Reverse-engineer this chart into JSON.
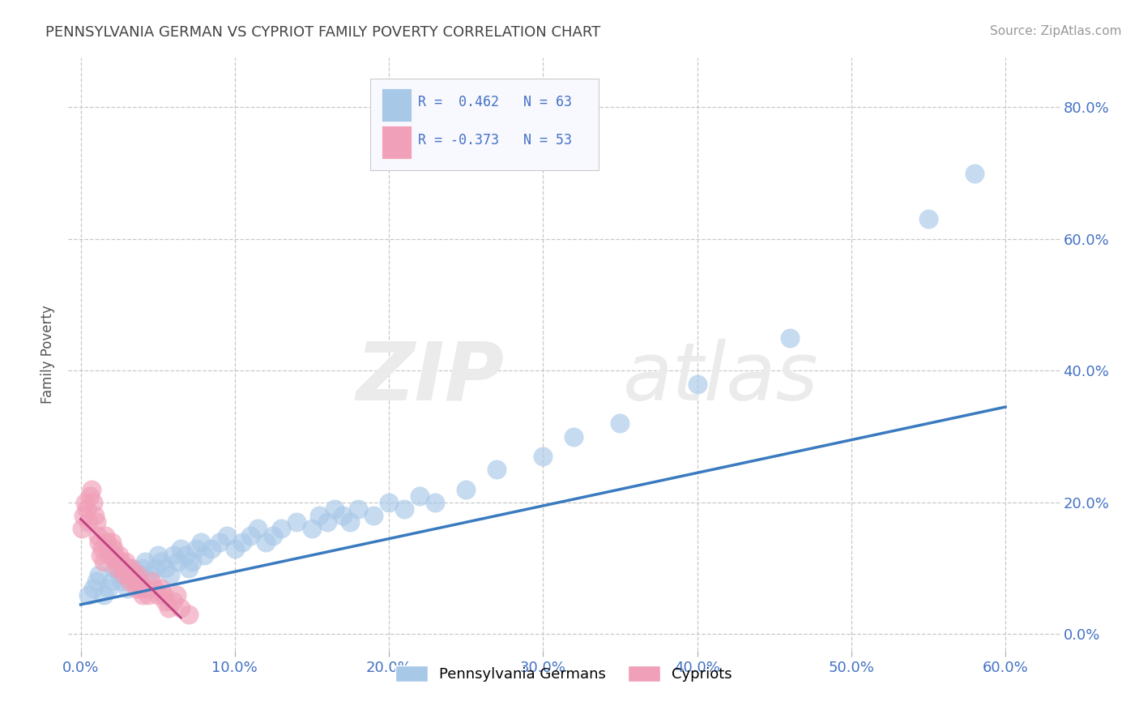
{
  "title": "PENNSYLVANIA GERMAN VS CYPRIOT FAMILY POVERTY CORRELATION CHART",
  "source": "Source: ZipAtlas.com",
  "xlabel_vals": [
    0.0,
    0.1,
    0.2,
    0.3,
    0.4,
    0.5,
    0.6
  ],
  "ylabel": "Family Poverty",
  "ylabel_vals": [
    0.0,
    0.2,
    0.4,
    0.6,
    0.8
  ],
  "xlim": [
    -0.008,
    0.635
  ],
  "ylim": [
    -0.025,
    0.875
  ],
  "bg_color": "#ffffff",
  "grid_color": "#c8c8c8",
  "blue_color": "#a8c8e8",
  "pink_color": "#f0a0b8",
  "blue_line_color": "#3a7abf",
  "pink_line_color": "#c04080",
  "title_color": "#444444",
  "axis_label_color": "#4472c4",
  "ylabel_color": "#555555",
  "pennsylvania_x": [
    0.005,
    0.008,
    0.01,
    0.012,
    0.015,
    0.018,
    0.02,
    0.022,
    0.025,
    0.027,
    0.03,
    0.032,
    0.035,
    0.038,
    0.04,
    0.042,
    0.045,
    0.048,
    0.05,
    0.052,
    0.055,
    0.058,
    0.06,
    0.063,
    0.065,
    0.068,
    0.07,
    0.072,
    0.075,
    0.078,
    0.08,
    0.085,
    0.09,
    0.095,
    0.1,
    0.105,
    0.11,
    0.115,
    0.12,
    0.125,
    0.13,
    0.14,
    0.15,
    0.155,
    0.16,
    0.165,
    0.17,
    0.175,
    0.18,
    0.19,
    0.2,
    0.21,
    0.22,
    0.23,
    0.25,
    0.27,
    0.3,
    0.32,
    0.35,
    0.4,
    0.46,
    0.55,
    0.58
  ],
  "pennsylvania_y": [
    0.06,
    0.07,
    0.08,
    0.09,
    0.06,
    0.07,
    0.08,
    0.1,
    0.09,
    0.08,
    0.07,
    0.1,
    0.08,
    0.09,
    0.1,
    0.11,
    0.09,
    0.1,
    0.12,
    0.11,
    0.1,
    0.09,
    0.12,
    0.11,
    0.13,
    0.12,
    0.1,
    0.11,
    0.13,
    0.14,
    0.12,
    0.13,
    0.14,
    0.15,
    0.13,
    0.14,
    0.15,
    0.16,
    0.14,
    0.15,
    0.16,
    0.17,
    0.16,
    0.18,
    0.17,
    0.19,
    0.18,
    0.17,
    0.19,
    0.18,
    0.2,
    0.19,
    0.21,
    0.2,
    0.22,
    0.25,
    0.27,
    0.3,
    0.32,
    0.38,
    0.45,
    0.63,
    0.7
  ],
  "blue_line_x": [
    0.0,
    0.6
  ],
  "blue_line_y": [
    0.045,
    0.345
  ],
  "cypriot_x": [
    0.001,
    0.002,
    0.003,
    0.004,
    0.005,
    0.006,
    0.007,
    0.008,
    0.009,
    0.01,
    0.011,
    0.012,
    0.013,
    0.014,
    0.015,
    0.016,
    0.017,
    0.018,
    0.019,
    0.02,
    0.021,
    0.022,
    0.023,
    0.024,
    0.025,
    0.026,
    0.027,
    0.028,
    0.029,
    0.03,
    0.031,
    0.032,
    0.033,
    0.034,
    0.035,
    0.036,
    0.037,
    0.038,
    0.039,
    0.04,
    0.042,
    0.044,
    0.046,
    0.048,
    0.05,
    0.052,
    0.054,
    0.055,
    0.057,
    0.06,
    0.062,
    0.065,
    0.07
  ],
  "cypriot_y": [
    0.16,
    0.18,
    0.2,
    0.19,
    0.17,
    0.21,
    0.22,
    0.2,
    0.18,
    0.17,
    0.15,
    0.14,
    0.12,
    0.13,
    0.11,
    0.15,
    0.14,
    0.13,
    0.12,
    0.14,
    0.13,
    0.12,
    0.11,
    0.1,
    0.12,
    0.11,
    0.1,
    0.09,
    0.11,
    0.1,
    0.09,
    0.08,
    0.1,
    0.09,
    0.08,
    0.07,
    0.09,
    0.08,
    0.07,
    0.06,
    0.07,
    0.06,
    0.08,
    0.07,
    0.06,
    0.07,
    0.06,
    0.05,
    0.04,
    0.05,
    0.06,
    0.04,
    0.03
  ],
  "pink_line_x": [
    0.0,
    0.065
  ],
  "pink_line_y": [
    0.175,
    0.025
  ]
}
